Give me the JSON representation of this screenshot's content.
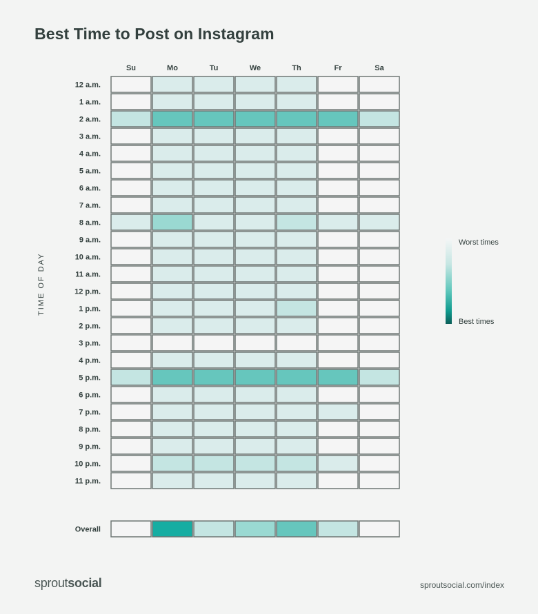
{
  "chart_data": {
    "type": "heatmap",
    "title": "Best Time to Post on Instagram",
    "ylabel": "TIME OF DAY",
    "x": [
      "Su",
      "Mo",
      "Tu",
      "We",
      "Th",
      "Fr",
      "Sa"
    ],
    "y": [
      "12 a.m.",
      "1 a.m.",
      "2 a.m.",
      "3 a.m.",
      "4 a.m.",
      "5 a.m.",
      "6 a.m.",
      "7 a.m.",
      "8 a.m.",
      "9 a.m.",
      "10 a.m.",
      "11 a.m.",
      "12 p.m.",
      "1 p.m.",
      "2 p.m.",
      "3 p.m.",
      "4 p.m.",
      "5 p.m.",
      "6 p.m.",
      "7 p.m.",
      "8 p.m.",
      "9 p.m.",
      "10 p.m.",
      "11 p.m."
    ],
    "values": [
      [
        0,
        1,
        1,
        1,
        1,
        0,
        0
      ],
      [
        0,
        1,
        1,
        1,
        1,
        0,
        0
      ],
      [
        2,
        4,
        4,
        4,
        4,
        4,
        2
      ],
      [
        0,
        1,
        1,
        1,
        1,
        0,
        0
      ],
      [
        0,
        1,
        1,
        1,
        1,
        0,
        0
      ],
      [
        0,
        1,
        1,
        1,
        1,
        0,
        0
      ],
      [
        0,
        1,
        1,
        1,
        1,
        0,
        0
      ],
      [
        0,
        1,
        1,
        1,
        1,
        0,
        0
      ],
      [
        1,
        3,
        1,
        1,
        2,
        1,
        1
      ],
      [
        0,
        1,
        1,
        1,
        1,
        0,
        0
      ],
      [
        0,
        1,
        1,
        1,
        1,
        0,
        0
      ],
      [
        0,
        1,
        1,
        1,
        1,
        0,
        0
      ],
      [
        0,
        1,
        1,
        1,
        1,
        0,
        0
      ],
      [
        0,
        1,
        1,
        1,
        2,
        0,
        0
      ],
      [
        0,
        1,
        1,
        1,
        1,
        0,
        0
      ],
      [
        0,
        0,
        0,
        0,
        0,
        0,
        0
      ],
      [
        0,
        1,
        1,
        1,
        1,
        0,
        0
      ],
      [
        2,
        4,
        4,
        4,
        4,
        4,
        2
      ],
      [
        0,
        1,
        1,
        1,
        1,
        0,
        0
      ],
      [
        0,
        1,
        1,
        1,
        1,
        1,
        0
      ],
      [
        0,
        1,
        1,
        1,
        1,
        0,
        0
      ],
      [
        0,
        1,
        1,
        1,
        1,
        0,
        0
      ],
      [
        0,
        2,
        2,
        2,
        2,
        1,
        0
      ],
      [
        0,
        1,
        1,
        1,
        1,
        0,
        0
      ]
    ],
    "overall": {
      "label": "Overall",
      "values": [
        0,
        5,
        2,
        3,
        4,
        2,
        0
      ]
    },
    "color_scale": [
      "#f5f5f5",
      "#daeceb",
      "#c4e5e2",
      "#9ad9d2",
      "#66c6bd",
      "#16ada2"
    ],
    "legend": {
      "placement": "right",
      "top_label": "Worst times",
      "bottom_label": "Best times"
    }
  },
  "footer": {
    "brand_light": "sprout",
    "brand_bold": "social",
    "url": "sproutsocial.com/index"
  },
  "colors": {
    "cell_border": "#6e7674",
    "text": "#33403e",
    "background": "#f3f4f3"
  }
}
